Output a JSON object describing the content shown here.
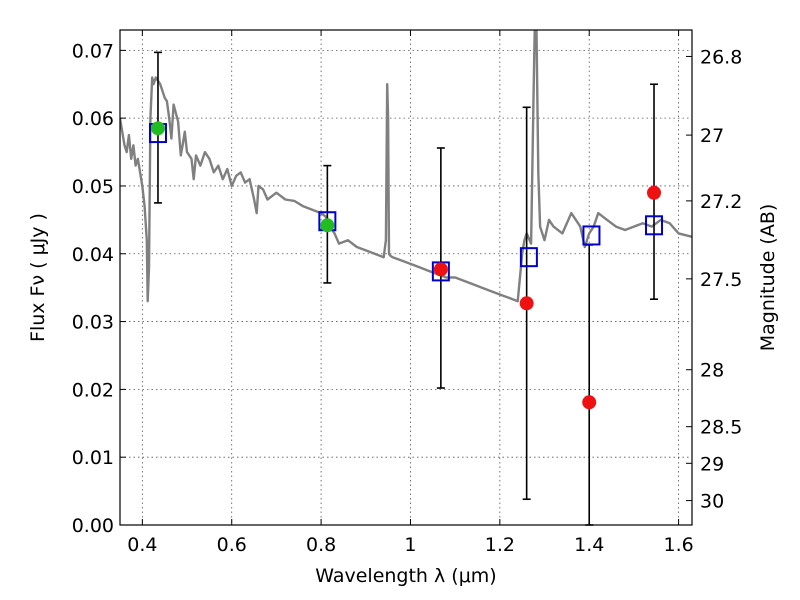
{
  "chart_data": {
    "type": "scatter",
    "xlabel": "Wavelength  λ (μm)",
    "ylabel_left": "Flux  Fν  ( μJy )",
    "ylabel_right": "Magnitude (AB)",
    "xlim": [
      0.35,
      1.63
    ],
    "ylim": [
      0.0,
      0.073
    ],
    "xticks": [
      0.4,
      0.6,
      0.8,
      1.0,
      1.2,
      1.4,
      1.6
    ],
    "xtick_labels": [
      "0.4",
      "0.6",
      "0.8",
      "1",
      "1.2",
      "1.4",
      "1.6"
    ],
    "yticks": [
      0.0,
      0.01,
      0.02,
      0.03,
      0.04,
      0.05,
      0.06,
      0.07
    ],
    "ytick_labels": [
      "0.00",
      "0.01",
      "0.02",
      "0.03",
      "0.04",
      "0.05",
      "0.06",
      "0.07"
    ],
    "right_ticks": [
      {
        "label": "26.8",
        "flux": 0.0691
      },
      {
        "label": "27",
        "flux": 0.0575
      },
      {
        "label": "27.2",
        "flux": 0.0478
      },
      {
        "label": "27.5",
        "flux": 0.0363
      },
      {
        "label": "28",
        "flux": 0.0229
      },
      {
        "label": "28.5",
        "flux": 0.0145
      },
      {
        "label": "29",
        "flux": 0.0091
      },
      {
        "label": "30",
        "flux": 0.0036
      }
    ],
    "grid": true,
    "colors": {
      "green": "#22bb22",
      "red": "#ee1111",
      "model_box": "#0000cc",
      "spectrum": "#808080",
      "errorbar": "#000000"
    },
    "series": [
      {
        "name": "observed_green",
        "color": "green",
        "points": [
          {
            "x": 0.435,
            "y": 0.0585,
            "ylo": 0.0475,
            "yhi": 0.0697
          },
          {
            "x": 0.814,
            "y": 0.0442,
            "ylo": 0.0357,
            "yhi": 0.053
          }
        ]
      },
      {
        "name": "observed_red",
        "color": "red",
        "points": [
          {
            "x": 1.068,
            "y": 0.0377,
            "ylo": 0.0202,
            "yhi": 0.0556
          },
          {
            "x": 1.26,
            "y": 0.0327,
            "ylo": 0.0038,
            "yhi": 0.0616
          },
          {
            "x": 1.4,
            "y": 0.0181,
            "ylo": 0.0,
            "yhi": 0.0413
          },
          {
            "x": 1.545,
            "y": 0.049,
            "ylo": 0.0333,
            "yhi": 0.065
          }
        ]
      },
      {
        "name": "model_boxes",
        "color": "model_box",
        "points": [
          {
            "x": 0.435,
            "y": 0.0578
          },
          {
            "x": 0.814,
            "y": 0.0448
          },
          {
            "x": 1.068,
            "y": 0.0374
          },
          {
            "x": 1.265,
            "y": 0.0395
          },
          {
            "x": 1.405,
            "y": 0.0427
          },
          {
            "x": 1.545,
            "y": 0.0442
          }
        ]
      }
    ],
    "spectrum": {
      "name": "model_spectrum",
      "x": [
        0.35,
        0.36,
        0.365,
        0.37,
        0.375,
        0.38,
        0.385,
        0.39,
        0.395,
        0.4,
        0.405,
        0.41,
        0.412,
        0.415,
        0.418,
        0.422,
        0.425,
        0.43,
        0.435,
        0.44,
        0.445,
        0.45,
        0.455,
        0.46,
        0.465,
        0.47,
        0.48,
        0.486,
        0.49,
        0.495,
        0.5,
        0.51,
        0.515,
        0.52,
        0.53,
        0.54,
        0.55,
        0.56,
        0.57,
        0.58,
        0.59,
        0.6,
        0.61,
        0.62,
        0.63,
        0.64,
        0.65,
        0.656,
        0.66,
        0.67,
        0.68,
        0.7,
        0.72,
        0.74,
        0.76,
        0.78,
        0.8,
        0.81,
        0.82,
        0.83,
        0.84,
        0.86,
        0.88,
        0.9,
        0.92,
        0.94,
        0.945,
        0.948,
        0.95,
        0.952,
        0.955,
        0.96,
        0.98,
        1.0,
        1.02,
        1.04,
        1.06,
        1.08,
        1.1,
        1.12,
        1.14,
        1.16,
        1.18,
        1.2,
        1.22,
        1.24,
        1.25,
        1.255,
        1.26,
        1.27,
        1.275,
        1.278,
        1.282,
        1.286,
        1.29,
        1.3,
        1.31,
        1.32,
        1.34,
        1.36,
        1.38,
        1.39,
        1.4,
        1.41,
        1.42,
        1.44,
        1.46,
        1.48,
        1.5,
        1.52,
        1.54,
        1.56,
        1.58,
        1.6,
        1.63
      ],
      "y": [
        0.06,
        0.056,
        0.055,
        0.0575,
        0.054,
        0.056,
        0.053,
        0.054,
        0.052,
        0.05,
        0.047,
        0.042,
        0.033,
        0.038,
        0.06,
        0.066,
        0.065,
        0.066,
        0.0655,
        0.065,
        0.064,
        0.063,
        0.0625,
        0.06,
        0.057,
        0.062,
        0.0595,
        0.0545,
        0.056,
        0.058,
        0.055,
        0.054,
        0.051,
        0.0545,
        0.053,
        0.055,
        0.054,
        0.052,
        0.053,
        0.051,
        0.0525,
        0.05,
        0.0515,
        0.052,
        0.0505,
        0.051,
        0.048,
        0.046,
        0.05,
        0.0495,
        0.048,
        0.049,
        0.048,
        0.0478,
        0.047,
        0.0465,
        0.046,
        0.0455,
        0.044,
        0.043,
        0.0415,
        0.042,
        0.041,
        0.0405,
        0.04,
        0.0395,
        0.042,
        0.065,
        0.06,
        0.04,
        0.0397,
        0.0395,
        0.039,
        0.0385,
        0.038,
        0.0375,
        0.037,
        0.0365,
        0.0365,
        0.036,
        0.0355,
        0.035,
        0.0345,
        0.034,
        0.0335,
        0.033,
        0.04,
        0.042,
        0.043,
        0.0415,
        0.062,
        0.073,
        0.073,
        0.052,
        0.044,
        0.042,
        0.045,
        0.044,
        0.043,
        0.046,
        0.044,
        0.041,
        0.043,
        0.044,
        0.046,
        0.045,
        0.044,
        0.0435,
        0.044,
        0.0445,
        0.044,
        0.045,
        0.0445,
        0.043,
        0.0425
      ]
    }
  }
}
